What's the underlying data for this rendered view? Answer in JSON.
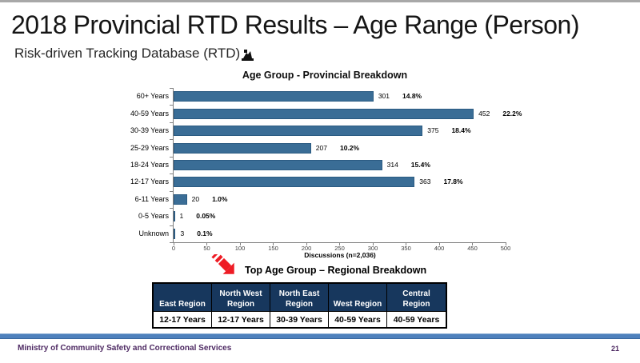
{
  "slide": {
    "title": "2018 Provincial RTD Results – Age Range (Person)",
    "subtitle": "Risk-driven Tracking Database (RTD)",
    "footer_text": "Ministry of Community Safety and Correctional Services",
    "page_number": "21",
    "icons": {
      "subtitle_icon": "rtd-clipart-icon",
      "table_arrow_icon": "red-striped-down-right-arrow-icon"
    }
  },
  "chart_data": {
    "type": "bar",
    "orientation": "horizontal",
    "title": "Age Group - Provincial Breakdown",
    "xlabel": "Discussions (n=2,036)",
    "categories": [
      "60+ Years",
      "40-59 Years",
      "30-39 Years",
      "25-29 Years",
      "18-24 Years",
      "12-17 Years",
      "6-11 Years",
      "0-5 Years",
      "Unknown"
    ],
    "values": [
      301,
      452,
      375,
      207,
      314,
      363,
      20,
      1,
      3
    ],
    "percent_labels": [
      "14.8%",
      "22.2%",
      "18.4%",
      "10.2%",
      "15.4%",
      "17.8%",
      "1.0%",
      "0.05%",
      "0.1%"
    ],
    "xlim": [
      0,
      500
    ],
    "xticks": [
      0,
      50,
      100,
      150,
      200,
      250,
      300,
      350,
      400,
      450,
      500
    ],
    "grid": false,
    "legend": false
  },
  "regional_table": {
    "title": "Top Age Group – Regional Breakdown",
    "headers": [
      "East Region",
      "North West Region",
      "North East Region",
      "West Region",
      "Central Region"
    ],
    "values": [
      "12-17 Years",
      "12-17 Years",
      "30-39 Years",
      "40-59 Years",
      "40-59 Years"
    ]
  },
  "colors": {
    "bar_fill": "#3a6d96",
    "bar_border": "#2b5b82",
    "table_header_bg": "#17375d",
    "footer_bar_blue": "#4f81bd",
    "footer_text_purple": "#4e2a63",
    "arrow_red": "#ee1c25",
    "axis_gray": "#808080"
  }
}
